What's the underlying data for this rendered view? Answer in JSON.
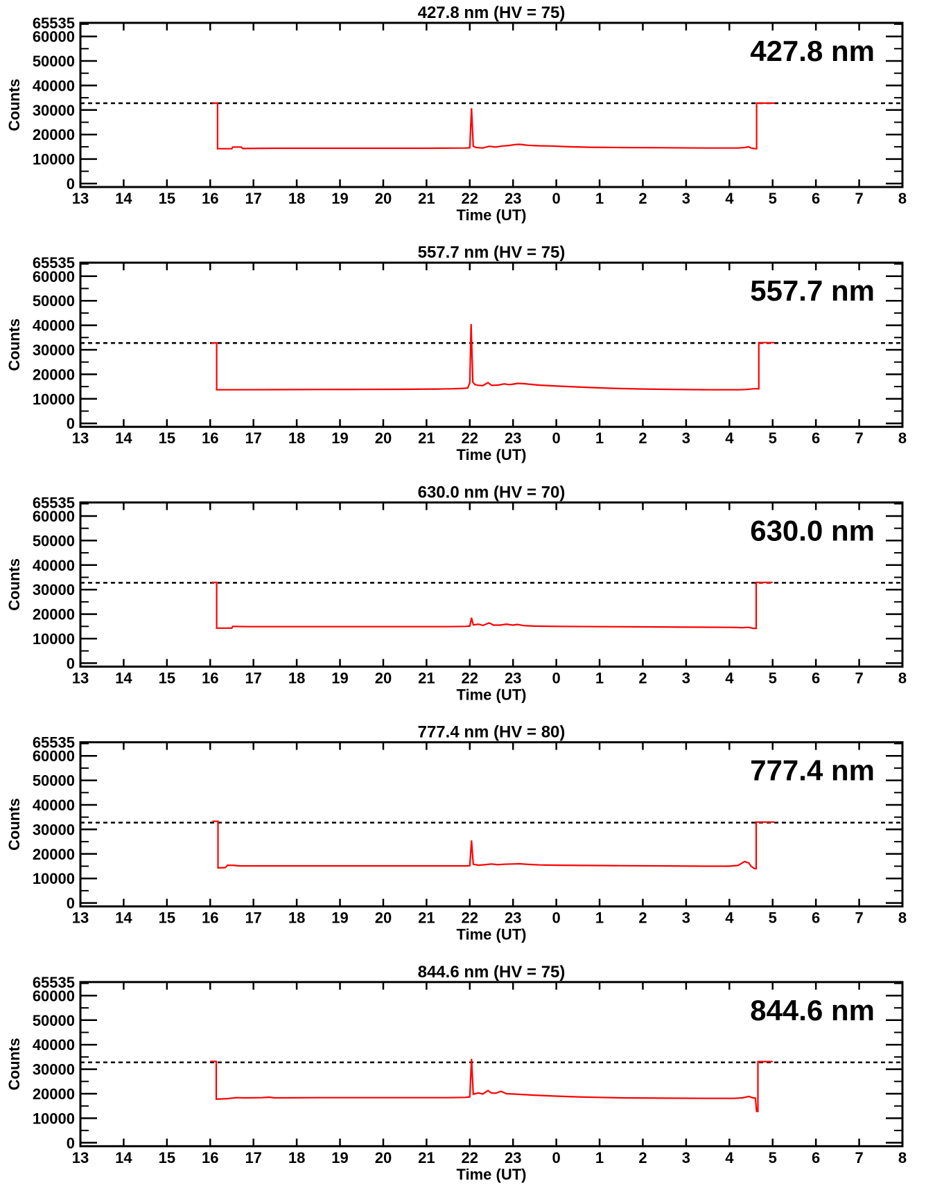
{
  "figure": {
    "background": "#ffffff",
    "axis_color": "#000000",
    "trace_color": "#ff0000",
    "xlabel": "Time (UT)",
    "ylabel": "Counts",
    "x_tick_labels": [
      "13",
      "14",
      "15",
      "16",
      "17",
      "18",
      "19",
      "20",
      "21",
      "22",
      "23",
      "0",
      "1",
      "2",
      "3",
      "4",
      "5",
      "6",
      "7",
      "8"
    ],
    "y_tick_labels": [
      {
        "label": "65535",
        "value": 65535
      },
      {
        "label": "60000",
        "value": 60000
      },
      {
        "label": "50000",
        "value": 50000
      },
      {
        "label": "40000",
        "value": 40000
      },
      {
        "label": "30000",
        "value": 30000
      },
      {
        "label": "20000",
        "value": 20000
      },
      {
        "label": "10000",
        "value": 10000
      },
      {
        "label": "0",
        "value": 0
      }
    ],
    "y_minor_tick_values": [
      5000,
      15000,
      25000,
      35000,
      45000,
      55000,
      65000
    ],
    "reference_line_value": 32768
  },
  "chart_data": [
    {
      "type": "line",
      "title": "427.8 nm (HV = 75)",
      "corner_label": "427.8 nm",
      "wavelength_nm": 427.8,
      "hv": 75,
      "xlabel": "Time (UT)",
      "ylabel": "Counts",
      "x_range_hours": [
        13,
        32
      ],
      "ylim": [
        0,
        65535
      ],
      "dashed_reference": 32768,
      "series": [
        {
          "name": "counts",
          "color": "#ff0000",
          "points": [
            [
              16.05,
              32800
            ],
            [
              16.17,
              32800
            ],
            [
              16.17,
              14200
            ],
            [
              16.5,
              14200
            ],
            [
              16.52,
              14900
            ],
            [
              16.72,
              14900
            ],
            [
              16.75,
              14300
            ],
            [
              17.5,
              14400
            ],
            [
              19.0,
              14400
            ],
            [
              21.0,
              14400
            ],
            [
              21.9,
              14500
            ],
            [
              22.0,
              14600
            ],
            [
              22.04,
              30700
            ],
            [
              22.08,
              15200
            ],
            [
              22.15,
              14700
            ],
            [
              22.3,
              14500
            ],
            [
              22.45,
              15200
            ],
            [
              22.6,
              14900
            ],
            [
              22.75,
              15300
            ],
            [
              22.9,
              15500
            ],
            [
              23.05,
              15900
            ],
            [
              23.15,
              16000
            ],
            [
              23.35,
              15600
            ],
            [
              23.6,
              15400
            ],
            [
              23.9,
              15300
            ],
            [
              24.3,
              15000
            ],
            [
              24.8,
              14800
            ],
            [
              25.5,
              14700
            ],
            [
              26.5,
              14600
            ],
            [
              27.5,
              14500
            ],
            [
              28.2,
              14500
            ],
            [
              28.35,
              14700
            ],
            [
              28.45,
              15000
            ],
            [
              28.5,
              14500
            ],
            [
              28.6,
              14200
            ],
            [
              28.63,
              14200
            ],
            [
              28.63,
              32800
            ],
            [
              29.05,
              32800
            ]
          ]
        }
      ]
    },
    {
      "type": "line",
      "title": "557.7 nm (HV = 75)",
      "corner_label": "557.7 nm",
      "wavelength_nm": 557.7,
      "hv": 75,
      "xlabel": "Time (UT)",
      "ylabel": "Counts",
      "x_range_hours": [
        13,
        32
      ],
      "ylim": [
        0,
        65535
      ],
      "dashed_reference": 32768,
      "series": [
        {
          "name": "counts",
          "color": "#ff0000",
          "points": [
            [
              16.03,
              32800
            ],
            [
              16.15,
              32800
            ],
            [
              16.15,
              13700
            ],
            [
              16.6,
              13700
            ],
            [
              17.5,
              13750
            ],
            [
              18.5,
              13800
            ],
            [
              19.5,
              13850
            ],
            [
              20.5,
              13900
            ],
            [
              21.3,
              14000
            ],
            [
              21.6,
              14100
            ],
            [
              21.8,
              14200
            ],
            [
              21.95,
              14400
            ],
            [
              22.0,
              16500
            ],
            [
              22.03,
              40500
            ],
            [
              22.07,
              16800
            ],
            [
              22.12,
              15800
            ],
            [
              22.2,
              15500
            ],
            [
              22.3,
              15400
            ],
            [
              22.42,
              16600
            ],
            [
              22.5,
              15500
            ],
            [
              22.65,
              15600
            ],
            [
              22.8,
              16100
            ],
            [
              22.9,
              15800
            ],
            [
              23.0,
              16000
            ],
            [
              23.1,
              16300
            ],
            [
              23.25,
              16200
            ],
            [
              23.4,
              15900
            ],
            [
              23.6,
              15600
            ],
            [
              23.9,
              15300
            ],
            [
              24.3,
              15000
            ],
            [
              24.8,
              14600
            ],
            [
              25.3,
              14300
            ],
            [
              26.0,
              14000
            ],
            [
              26.8,
              13800
            ],
            [
              27.5,
              13700
            ],
            [
              28.2,
              13700
            ],
            [
              28.4,
              13800
            ],
            [
              28.55,
              14100
            ],
            [
              28.68,
              14100
            ],
            [
              28.68,
              32900
            ],
            [
              29.04,
              32900
            ]
          ]
        }
      ]
    },
    {
      "type": "line",
      "title": "630.0 nm (HV = 70)",
      "corner_label": "630.0 nm",
      "wavelength_nm": 630.0,
      "hv": 70,
      "xlabel": "Time (UT)",
      "ylabel": "Counts",
      "x_range_hours": [
        13,
        32
      ],
      "ylim": [
        0,
        65535
      ],
      "dashed_reference": 32768,
      "series": [
        {
          "name": "counts",
          "color": "#ff0000",
          "points": [
            [
              16.03,
              32900
            ],
            [
              16.15,
              32900
            ],
            [
              16.15,
              14300
            ],
            [
              16.5,
              14300
            ],
            [
              16.52,
              15000
            ],
            [
              16.9,
              14900
            ],
            [
              18.0,
              14900
            ],
            [
              20.0,
              14900
            ],
            [
              21.5,
              14900
            ],
            [
              21.9,
              15000
            ],
            [
              22.0,
              15100
            ],
            [
              22.04,
              18500
            ],
            [
              22.08,
              15600
            ],
            [
              22.2,
              15900
            ],
            [
              22.3,
              15400
            ],
            [
              22.45,
              16400
            ],
            [
              22.55,
              15500
            ],
            [
              22.7,
              15500
            ],
            [
              22.85,
              15900
            ],
            [
              23.0,
              15500
            ],
            [
              23.1,
              15800
            ],
            [
              23.25,
              15300
            ],
            [
              23.5,
              15100
            ],
            [
              24.0,
              15000
            ],
            [
              25.0,
              14900
            ],
            [
              26.0,
              14800
            ],
            [
              27.0,
              14700
            ],
            [
              28.0,
              14600
            ],
            [
              28.3,
              14500
            ],
            [
              28.45,
              14600
            ],
            [
              28.55,
              14200
            ],
            [
              28.62,
              14200
            ],
            [
              28.62,
              32900
            ],
            [
              29.0,
              32900
            ]
          ]
        }
      ]
    },
    {
      "type": "line",
      "title": "777.4 nm (HV = 80)",
      "corner_label": "777.4 nm",
      "wavelength_nm": 777.4,
      "hv": 80,
      "xlabel": "Time (UT)",
      "ylabel": "Counts",
      "x_range_hours": [
        13,
        32
      ],
      "ylim": [
        0,
        65535
      ],
      "dashed_reference": 32768,
      "series": [
        {
          "name": "counts",
          "color": "#ff0000",
          "points": [
            [
              16.05,
              33300
            ],
            [
              16.18,
              33300
            ],
            [
              16.18,
              14300
            ],
            [
              16.35,
              14400
            ],
            [
              16.4,
              15400
            ],
            [
              16.55,
              15300
            ],
            [
              16.7,
              15100
            ],
            [
              17.5,
              15100
            ],
            [
              19.0,
              15100
            ],
            [
              21.0,
              15100
            ],
            [
              21.9,
              15100
            ],
            [
              22.0,
              15200
            ],
            [
              22.04,
              25500
            ],
            [
              22.08,
              15800
            ],
            [
              22.2,
              15400
            ],
            [
              22.35,
              15600
            ],
            [
              22.5,
              15900
            ],
            [
              22.65,
              15600
            ],
            [
              22.8,
              15800
            ],
            [
              23.0,
              15900
            ],
            [
              23.15,
              16000
            ],
            [
              23.3,
              15800
            ],
            [
              23.6,
              15500
            ],
            [
              24.0,
              15400
            ],
            [
              24.5,
              15300
            ],
            [
              25.5,
              15200
            ],
            [
              26.5,
              15100
            ],
            [
              27.5,
              15000
            ],
            [
              28.0,
              15000
            ],
            [
              28.2,
              15300
            ],
            [
              28.35,
              16900
            ],
            [
              28.45,
              16300
            ],
            [
              28.5,
              15000
            ],
            [
              28.58,
              14000
            ],
            [
              28.62,
              14000
            ],
            [
              28.62,
              33000
            ],
            [
              28.7,
              33000
            ],
            [
              29.05,
              33000
            ]
          ]
        }
      ]
    },
    {
      "type": "line",
      "title": "844.6 nm (HV = 75)",
      "corner_label": "844.6 nm",
      "wavelength_nm": 844.6,
      "hv": 75,
      "xlabel": "Time (UT)",
      "ylabel": "Counts",
      "x_range_hours": [
        13,
        32
      ],
      "ylim": [
        0,
        65535
      ],
      "dashed_reference": 32768,
      "series": [
        {
          "name": "counts",
          "color": "#ff0000",
          "points": [
            [
              16.0,
              33200
            ],
            [
              16.14,
              33200
            ],
            [
              16.14,
              17800
            ],
            [
              16.4,
              18000
            ],
            [
              16.6,
              18400
            ],
            [
              16.8,
              18300
            ],
            [
              17.2,
              18400
            ],
            [
              17.35,
              18600
            ],
            [
              17.5,
              18300
            ],
            [
              18.5,
              18400
            ],
            [
              19.5,
              18400
            ],
            [
              20.5,
              18400
            ],
            [
              21.5,
              18400
            ],
            [
              21.9,
              18500
            ],
            [
              22.0,
              18700
            ],
            [
              22.04,
              34200
            ],
            [
              22.08,
              19800
            ],
            [
              22.2,
              20300
            ],
            [
              22.3,
              19900
            ],
            [
              22.42,
              21300
            ],
            [
              22.5,
              20300
            ],
            [
              22.6,
              20200
            ],
            [
              22.72,
              21000
            ],
            [
              22.85,
              20000
            ],
            [
              23.0,
              19900
            ],
            [
              23.2,
              19700
            ],
            [
              23.5,
              19400
            ],
            [
              24.0,
              19000
            ],
            [
              24.5,
              18700
            ],
            [
              25.0,
              18500
            ],
            [
              25.5,
              18300
            ],
            [
              26.5,
              18200
            ],
            [
              27.5,
              18100
            ],
            [
              28.1,
              18100
            ],
            [
              28.3,
              18300
            ],
            [
              28.45,
              18900
            ],
            [
              28.55,
              18300
            ],
            [
              28.6,
              18200
            ],
            [
              28.63,
              12800
            ],
            [
              28.66,
              12800
            ],
            [
              28.66,
              33100
            ],
            [
              29.0,
              33100
            ]
          ]
        }
      ]
    }
  ]
}
